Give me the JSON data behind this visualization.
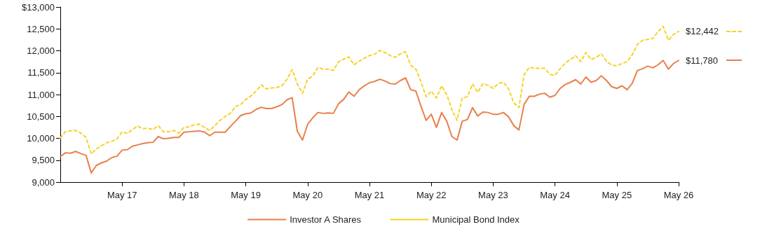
{
  "chart_data": {
    "type": "line",
    "categories": [
      null,
      null,
      null,
      null,
      null,
      null,
      null,
      null,
      null,
      null,
      null,
      null,
      "May 17",
      null,
      null,
      null,
      null,
      null,
      null,
      null,
      null,
      null,
      null,
      null,
      "May 18",
      null,
      null,
      null,
      null,
      null,
      null,
      null,
      null,
      null,
      null,
      null,
      "May 19",
      null,
      null,
      null,
      null,
      null,
      null,
      null,
      null,
      null,
      null,
      null,
      "May 20",
      null,
      null,
      null,
      null,
      null,
      null,
      null,
      null,
      null,
      null,
      null,
      "May 21",
      null,
      null,
      null,
      null,
      null,
      null,
      null,
      null,
      null,
      null,
      null,
      "May 22",
      null,
      null,
      null,
      null,
      null,
      null,
      null,
      null,
      null,
      null,
      null,
      "May 23",
      null,
      null,
      null,
      null,
      null,
      null,
      null,
      null,
      null,
      null,
      null,
      "May 24",
      null,
      null,
      null,
      null,
      null,
      null,
      null,
      null,
      null,
      null,
      null,
      "May 25",
      null,
      null,
      null,
      null,
      null,
      null,
      null,
      null,
      null,
      null,
      null,
      "May 26"
    ],
    "series": [
      {
        "name": "Investor A Shares",
        "color": "#e8804a",
        "line_style": "solid",
        "values": [
          9580,
          9670,
          9660,
          9700,
          9650,
          9610,
          9210,
          9380,
          9440,
          9480,
          9560,
          9590,
          9730,
          9740,
          9820,
          9850,
          9880,
          9900,
          9910,
          10040,
          9990,
          10000,
          10020,
          10020,
          10140,
          10150,
          10160,
          10170,
          10140,
          10060,
          10140,
          10140,
          10140,
          10270,
          10390,
          10520,
          10560,
          10580,
          10660,
          10710,
          10680,
          10680,
          10720,
          10770,
          10880,
          10930,
          10160,
          9960,
          10320,
          10470,
          10590,
          10570,
          10580,
          10570,
          10790,
          10890,
          11060,
          10960,
          11110,
          11200,
          11270,
          11300,
          11350,
          11310,
          11250,
          11240,
          11320,
          11380,
          11110,
          11080,
          10730,
          10410,
          10550,
          10250,
          10590,
          10390,
          10040,
          9960,
          10390,
          10430,
          10700,
          10510,
          10600,
          10590,
          10550,
          10550,
          10590,
          10490,
          10290,
          10190,
          10770,
          10960,
          10960,
          11010,
          11030,
          10940,
          10980,
          11140,
          11230,
          11280,
          11340,
          11240,
          11400,
          11280,
          11320,
          11430,
          11320,
          11180,
          11140,
          11200,
          11110,
          11260,
          11550,
          11590,
          11650,
          11610,
          11680,
          11780,
          11580,
          11710,
          11780
        ]
      },
      {
        "name": "Municipal Bond Index",
        "color": "#f5d328",
        "line_style": "dashed",
        "values": [
          10010,
          10150,
          10170,
          10180,
          10120,
          10020,
          9640,
          9760,
          9830,
          9900,
          9930,
          9990,
          10150,
          10110,
          10200,
          10280,
          10220,
          10230,
          10200,
          10290,
          10150,
          10150,
          10180,
          10120,
          10250,
          10260,
          10310,
          10320,
          10250,
          10180,
          10290,
          10410,
          10500,
          10570,
          10730,
          10770,
          10890,
          10970,
          11080,
          11220,
          11130,
          11150,
          11160,
          11200,
          11350,
          11570,
          11240,
          11030,
          11350,
          11430,
          11620,
          11580,
          11580,
          11550,
          11750,
          11810,
          11860,
          11680,
          11760,
          11830,
          11890,
          11920,
          12010,
          11960,
          11890,
          11850,
          11930,
          11980,
          11670,
          11580,
          11290,
          10950,
          11080,
          10920,
          11200,
          11000,
          10650,
          10410,
          10920,
          10950,
          11240,
          11050,
          11250,
          11210,
          11140,
          11250,
          11280,
          11130,
          10810,
          10700,
          11450,
          11620,
          11600,
          11600,
          11600,
          11460,
          11440,
          11590,
          11720,
          11800,
          11890,
          11750,
          11960,
          11800,
          11850,
          11930,
          11760,
          11670,
          11660,
          11710,
          11750,
          11910,
          12150,
          12240,
          12260,
          12280,
          12440,
          12560,
          12240,
          12370,
          12442
        ]
      }
    ],
    "ylim": [
      9000,
      13000
    ],
    "yticks": [
      {
        "value": 9000,
        "label": "9,000"
      },
      {
        "value": 9500,
        "label": "9,500"
      },
      {
        "value": 10000,
        "label": "10,000"
      },
      {
        "value": 10500,
        "label": "10,500"
      },
      {
        "value": 11000,
        "label": "11,000"
      },
      {
        "value": 11500,
        "label": "11,500"
      },
      {
        "value": 12000,
        "label": "12,000"
      },
      {
        "value": 12500,
        "label": "12,500"
      },
      {
        "value": 13000,
        "label": "$13,000"
      }
    ],
    "annotations": [
      {
        "text": "$12,442",
        "x": "May 26",
        "y": 12442
      },
      {
        "text": "$11,780",
        "x": "May 26",
        "y": 11780
      }
    ],
    "grid": false,
    "legend": "bottom",
    "marker": "none"
  }
}
